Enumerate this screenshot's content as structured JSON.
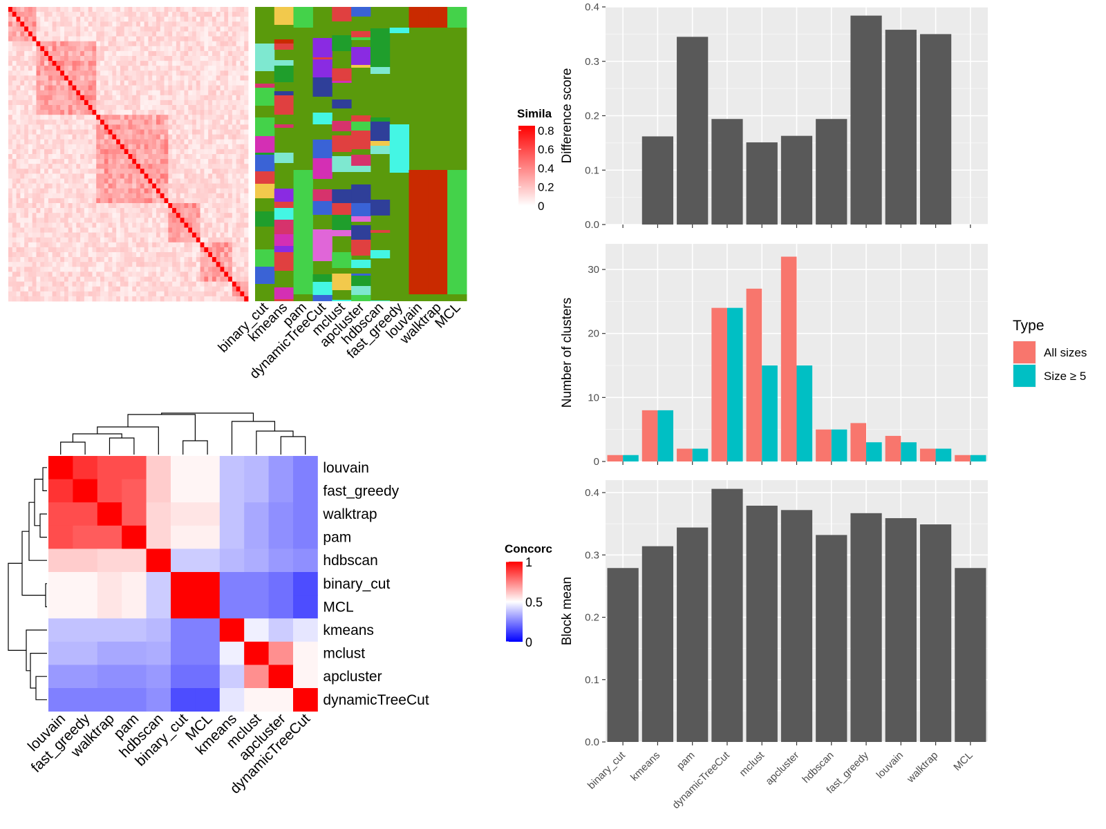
{
  "methods_column_order": [
    "binary_cut",
    "kmeans",
    "pam",
    "dynamicTreeCut",
    "mclust",
    "apcluster",
    "hdbscan",
    "fast_greedy",
    "louvain",
    "walktrap",
    "MCL"
  ],
  "similarity_legend": {
    "title": "Simila",
    "ticks": [
      "0.8",
      "0.6",
      "0.4",
      "0.2",
      "0"
    ],
    "tick_values": [
      0.8,
      0.6,
      0.4,
      0.2,
      0
    ],
    "colors": [
      "#ffffff",
      "#ff0000"
    ]
  },
  "concordance_legend": {
    "title": "Concorc",
    "ticks": [
      "1",
      "0.5",
      "0"
    ],
    "tick_values": [
      1,
      0.5,
      0
    ],
    "colors": [
      "#0000ff",
      "#ffffff",
      "#ff0000"
    ]
  },
  "concordance_order": [
    "louvain",
    "fast_greedy",
    "walktrap",
    "pam",
    "hdbscan",
    "binary_cut",
    "MCL",
    "kmeans",
    "mclust",
    "apcluster",
    "dynamicTreeCut"
  ],
  "chart_data": [
    {
      "type": "heatmap",
      "label": "similarity_matrix_with_cluster_assignments",
      "value_range": [
        0,
        0.8
      ],
      "colors": {
        "green": "#5a9a0c",
        "red": "#c92a00",
        "light_green": "#44d24a",
        "cyan": "#44f6e4"
      },
      "annotation_columns": [
        "binary_cut",
        "kmeans",
        "pam",
        "dynamicTreeCut",
        "mclust",
        "apcluster",
        "hdbscan",
        "fast_greedy",
        "louvain",
        "walktrap",
        "MCL"
      ]
    },
    {
      "type": "heatmap",
      "label": "concordance",
      "rows": [
        "louvain",
        "fast_greedy",
        "walktrap",
        "pam",
        "hdbscan",
        "binary_cut",
        "MCL",
        "kmeans",
        "mclust",
        "apcluster",
        "dynamicTreeCut"
      ],
      "columns": [
        "louvain",
        "fast_greedy",
        "walktrap",
        "pam",
        "hdbscan",
        "binary_cut",
        "MCL",
        "kmeans",
        "mclust",
        "apcluster",
        "dynamicTreeCut"
      ],
      "values": [
        [
          1.0,
          0.9,
          0.85,
          0.85,
          0.6,
          0.52,
          0.52,
          0.38,
          0.36,
          0.3,
          0.25
        ],
        [
          0.9,
          1.0,
          0.85,
          0.82,
          0.6,
          0.52,
          0.52,
          0.38,
          0.36,
          0.3,
          0.25
        ],
        [
          0.85,
          0.85,
          1.0,
          0.82,
          0.58,
          0.55,
          0.55,
          0.38,
          0.33,
          0.28,
          0.25
        ],
        [
          0.85,
          0.82,
          0.82,
          1.0,
          0.58,
          0.53,
          0.53,
          0.38,
          0.33,
          0.28,
          0.25
        ],
        [
          0.6,
          0.6,
          0.58,
          0.58,
          1.0,
          0.4,
          0.4,
          0.36,
          0.34,
          0.3,
          0.28
        ],
        [
          0.52,
          0.52,
          0.55,
          0.53,
          0.4,
          1.0,
          1.0,
          0.25,
          0.25,
          0.22,
          0.15
        ],
        [
          0.52,
          0.52,
          0.55,
          0.53,
          0.4,
          1.0,
          1.0,
          0.25,
          0.25,
          0.22,
          0.15
        ],
        [
          0.38,
          0.38,
          0.38,
          0.38,
          0.36,
          0.25,
          0.25,
          1.0,
          0.47,
          0.4,
          0.45
        ],
        [
          0.36,
          0.36,
          0.33,
          0.33,
          0.34,
          0.25,
          0.25,
          0.47,
          1.0,
          0.72,
          0.52
        ],
        [
          0.3,
          0.3,
          0.28,
          0.28,
          0.3,
          0.22,
          0.22,
          0.4,
          0.72,
          1.0,
          0.52
        ],
        [
          0.25,
          0.25,
          0.25,
          0.25,
          0.28,
          0.15,
          0.15,
          0.45,
          0.52,
          0.52,
          1.0
        ]
      ]
    },
    {
      "type": "bar",
      "label": "difference_score",
      "categories": [
        "binary_cut",
        "kmeans",
        "pam",
        "dynamicTreeCut",
        "mclust",
        "apcluster",
        "hdbscan",
        "fast_greedy",
        "louvain",
        "walktrap",
        "MCL"
      ],
      "values": [
        0,
        0.162,
        0.345,
        0.194,
        0.151,
        0.163,
        0.194,
        0.384,
        0.358,
        0.35,
        0
      ],
      "ylabel": "Difference score",
      "ylim": [
        0,
        0.4
      ],
      "yticks": [
        "0.0",
        "0.1",
        "0.2",
        "0.3",
        "0.4"
      ],
      "ytick_values": [
        0,
        0.1,
        0.2,
        0.3,
        0.4
      ],
      "color": "#595959",
      "grid": true
    },
    {
      "type": "bar",
      "label": "number_of_clusters",
      "categories": [
        "binary_cut",
        "kmeans",
        "pam",
        "dynamicTreeCut",
        "mclust",
        "apcluster",
        "hdbscan",
        "fast_greedy",
        "louvain",
        "walktrap",
        "MCL"
      ],
      "series": [
        {
          "name": "All sizes",
          "values": [
            1,
            8,
            2,
            24,
            27,
            32,
            5,
            6,
            4,
            2,
            1
          ],
          "color": "#f8766d"
        },
        {
          "name": "Size ≥ 5",
          "values": [
            1,
            8,
            2,
            24,
            15,
            15,
            5,
            3,
            3,
            2,
            1
          ],
          "color": "#00bfc4"
        }
      ],
      "ylabel": "Number of clusters",
      "ylim": [
        0,
        34
      ],
      "yticks": [
        "0",
        "10",
        "20",
        "30"
      ],
      "ytick_values": [
        0,
        10,
        20,
        30
      ],
      "legend_title": "Type",
      "legend_position": "right",
      "grid": true
    },
    {
      "type": "bar",
      "label": "block_mean",
      "categories": [
        "binary_cut",
        "kmeans",
        "pam",
        "dynamicTreeCut",
        "mclust",
        "apcluster",
        "hdbscan",
        "fast_greedy",
        "louvain",
        "walktrap",
        "MCL"
      ],
      "values": [
        0.279,
        0.314,
        0.344,
        0.406,
        0.379,
        0.372,
        0.332,
        0.367,
        0.359,
        0.349,
        0.279
      ],
      "ylabel": "Block mean",
      "ylim": [
        0,
        0.42
      ],
      "yticks": [
        "0.0",
        "0.1",
        "0.2",
        "0.3",
        "0.4"
      ],
      "ytick_values": [
        0,
        0.1,
        0.2,
        0.3,
        0.4
      ],
      "color": "#595959",
      "grid": true
    }
  ]
}
